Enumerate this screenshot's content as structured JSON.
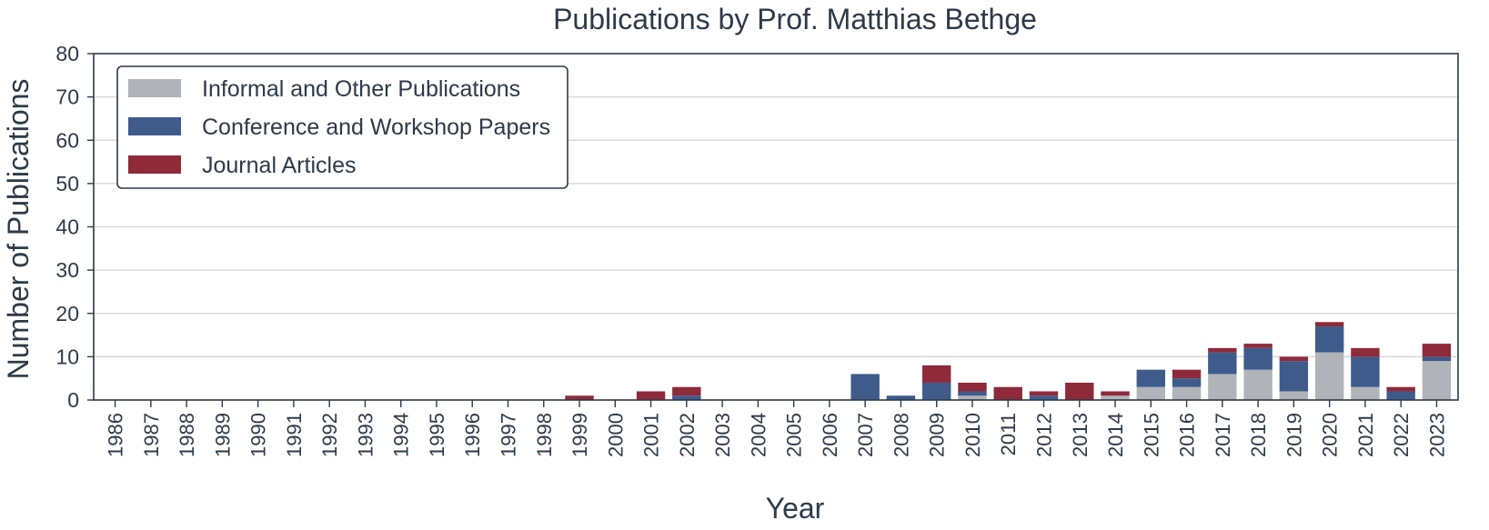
{
  "chart_data": {
    "type": "bar",
    "stacked": true,
    "title": "Publications by Prof. Matthias Bethge",
    "xlabel": "Year",
    "ylabel": "Number of Publications",
    "ylim": [
      0,
      80
    ],
    "yticks": [
      0,
      10,
      20,
      30,
      40,
      50,
      60,
      70,
      80
    ],
    "grid": "horizontal",
    "legend_position": "top-left",
    "categories": [
      "1986",
      "1987",
      "1988",
      "1989",
      "1990",
      "1991",
      "1992",
      "1993",
      "1994",
      "1995",
      "1996",
      "1997",
      "1998",
      "1999",
      "2000",
      "2001",
      "2002",
      "2003",
      "2004",
      "2005",
      "2006",
      "2007",
      "2008",
      "2009",
      "2010",
      "2011",
      "2012",
      "2013",
      "2014",
      "2015",
      "2016",
      "2017",
      "2018",
      "2019",
      "2020",
      "2021",
      "2022",
      "2023"
    ],
    "series": [
      {
        "name": "Informal and Other Publications",
        "color": "#b0b3b8",
        "values": [
          0,
          0,
          0,
          0,
          0,
          0,
          0,
          0,
          0,
          0,
          0,
          0,
          0,
          0,
          0,
          0,
          0,
          0,
          0,
          0,
          0,
          0,
          0,
          0,
          1,
          0,
          0,
          0,
          1,
          3,
          3,
          6,
          7,
          2,
          11,
          3,
          0,
          9
        ]
      },
      {
        "name": "Conference and Workshop Papers",
        "color": "#3f5b8c",
        "values": [
          0,
          0,
          0,
          0,
          0,
          0,
          0,
          0,
          0,
          0,
          0,
          0,
          0,
          0,
          0,
          0,
          1,
          0,
          0,
          0,
          0,
          6,
          1,
          4,
          1,
          0,
          1,
          0,
          0,
          4,
          2,
          5,
          5,
          7,
          6,
          7,
          2,
          1
        ]
      },
      {
        "name": "Journal Articles",
        "color": "#8e2a3a",
        "values": [
          0,
          0,
          0,
          0,
          0,
          0,
          0,
          0,
          0,
          0,
          0,
          0,
          0,
          1,
          0,
          2,
          2,
          0,
          0,
          0,
          0,
          0,
          0,
          4,
          2,
          3,
          1,
          4,
          1,
          0,
          2,
          1,
          1,
          1,
          1,
          2,
          1,
          3
        ]
      }
    ]
  }
}
